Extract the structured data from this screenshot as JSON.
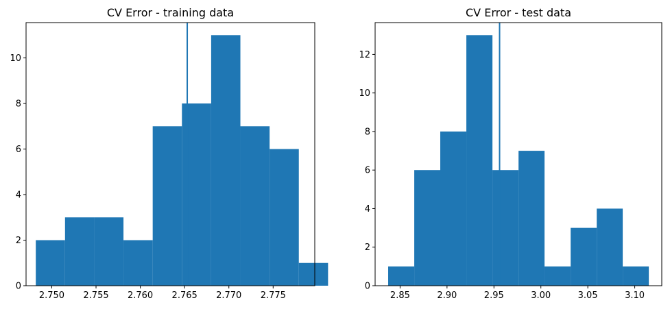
{
  "chart_data": [
    {
      "type": "bar",
      "title": "CV Error - training data",
      "xlabel": "",
      "ylabel": "",
      "xlim": [
        2.7471,
        2.7797
      ],
      "ylim": [
        0,
        11.55
      ],
      "x_ticks": [
        2.75,
        2.755,
        2.76,
        2.765,
        2.77,
        2.775
      ],
      "x_tick_labels": [
        "2.750",
        "2.755",
        "2.760",
        "2.765",
        "2.770",
        "2.775"
      ],
      "y_ticks": [
        0,
        2,
        4,
        6,
        8,
        10
      ],
      "y_tick_labels": [
        "0",
        "2",
        "4",
        "6",
        "8",
        "10"
      ],
      "bin_edges": [
        2.7482,
        2.7515,
        2.7548,
        2.7581,
        2.7614,
        2.7647,
        2.768,
        2.7713,
        2.7746,
        2.7779,
        2.7812
      ],
      "counts": [
        2,
        3,
        3,
        2,
        7,
        8,
        11,
        7,
        6,
        1
      ],
      "mean_line_x": 2.7653,
      "grid": false,
      "color": "#1f77b4"
    },
    {
      "type": "bar",
      "title": "CV Error - test data",
      "xlabel": "",
      "ylabel": "",
      "xlim": [
        2.8234,
        3.1288
      ],
      "ylim": [
        0,
        13.65
      ],
      "x_ticks": [
        2.85,
        2.9,
        2.95,
        3.0,
        3.05,
        3.1
      ],
      "x_tick_labels": [
        "2.85",
        "2.90",
        "2.95",
        "3.00",
        "3.05",
        "3.10"
      ],
      "y_ticks": [
        0,
        2,
        4,
        6,
        8,
        10,
        12
      ],
      "y_tick_labels": [
        "0",
        "2",
        "4",
        "6",
        "8",
        "10",
        "12"
      ],
      "bin_edges": [
        2.8373,
        2.8651,
        2.8928,
        2.9206,
        2.9484,
        2.9762,
        3.0039,
        3.0317,
        3.0595,
        3.0872,
        3.115
      ],
      "counts": [
        1,
        6,
        8,
        13,
        6,
        7,
        1,
        3,
        4,
        1
      ],
      "mean_line_x": 2.956,
      "grid": false,
      "color": "#1f77b4"
    }
  ]
}
